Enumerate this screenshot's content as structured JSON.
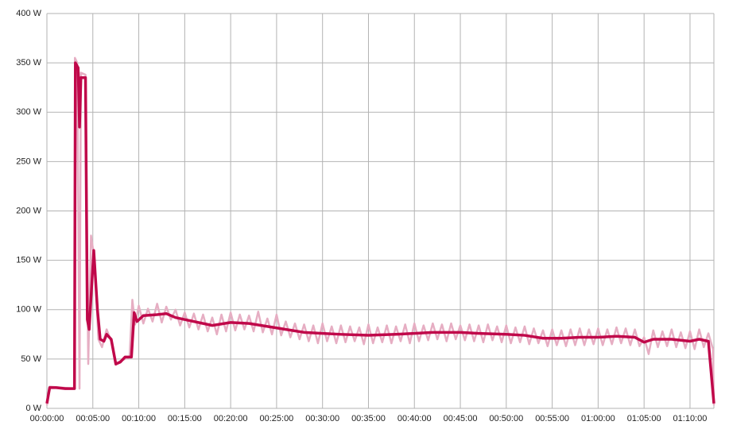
{
  "chart_data": {
    "type": "line",
    "xlim": [
      0,
      72.6
    ],
    "ylim": [
      0,
      400
    ],
    "grid": true,
    "xticks": [
      {
        "value": 0,
        "label": "00:00:00"
      },
      {
        "value": 5,
        "label": "00:05:00"
      },
      {
        "value": 10,
        "label": "00:10:00"
      },
      {
        "value": 15,
        "label": "00:15:00"
      },
      {
        "value": 20,
        "label": "00:20:00"
      },
      {
        "value": 25,
        "label": "00:25:00"
      },
      {
        "value": 30,
        "label": "00:30:00"
      },
      {
        "value": 35,
        "label": "00:35:00"
      },
      {
        "value": 40,
        "label": "00:40:00"
      },
      {
        "value": 45,
        "label": "00:45:00"
      },
      {
        "value": 50,
        "label": "00:50:00"
      },
      {
        "value": 55,
        "label": "00:55:00"
      },
      {
        "value": 60,
        "label": "01:00:00"
      },
      {
        "value": 65,
        "label": "01:05:00"
      },
      {
        "value": 70,
        "label": "01:10:00"
      }
    ],
    "yticks": [
      {
        "value": 0,
        "label": "0  W"
      },
      {
        "value": 50,
        "label": "50  W"
      },
      {
        "value": 100,
        "label": "100  W"
      },
      {
        "value": 150,
        "label": "150  W"
      },
      {
        "value": 200,
        "label": "200  W"
      },
      {
        "value": 250,
        "label": "250  W"
      },
      {
        "value": 300,
        "label": "300  W"
      },
      {
        "value": 350,
        "label": "350  W"
      },
      {
        "value": 400,
        "label": "400  W"
      }
    ],
    "series": [
      {
        "color": "#e6aec3",
        "width": 2.5,
        "x": [
          0,
          0.3,
          3,
          3.05,
          3.3,
          3.55,
          3.7,
          4.2,
          4.5,
          4.8,
          5.2,
          5.6,
          6,
          6.5,
          7,
          7.5,
          8,
          9,
          9.3,
          9.6,
          10,
          10.5,
          11,
          11.5,
          12,
          12.5,
          13,
          13.5,
          14,
          14.5,
          15,
          15.5,
          16,
          16.5,
          17,
          17.5,
          18,
          18.5,
          19,
          19.5,
          20,
          20.5,
          21,
          21.5,
          22,
          22.5,
          23,
          23.5,
          24,
          24.5,
          25,
          25.5,
          26,
          26.5,
          27,
          27.5,
          28,
          28.5,
          29,
          29.5,
          30,
          30.5,
          31,
          31.5,
          32,
          32.5,
          33,
          33.5,
          34,
          34.5,
          35,
          35.5,
          36,
          36.5,
          37,
          37.5,
          38,
          38.5,
          39,
          39.5,
          40,
          40.5,
          41,
          41.5,
          42,
          42.5,
          43,
          43.5,
          44,
          44.5,
          45,
          45.5,
          46,
          46.5,
          47,
          47.5,
          48,
          48.5,
          49,
          49.5,
          50,
          50.5,
          51,
          51.5,
          52,
          52.5,
          53,
          53.5,
          54,
          54.5,
          55,
          55.5,
          56,
          56.5,
          57,
          57.5,
          58,
          58.5,
          59,
          59.5,
          60,
          60.5,
          61,
          61.5,
          62,
          62.5,
          63,
          63.5,
          64,
          64.5,
          65,
          65.5,
          66,
          66.5,
          67,
          67.5,
          68,
          68.5,
          69,
          69.5,
          70,
          70.5,
          71,
          71.5,
          72,
          72.5,
          72.6
        ],
        "values": [
          3,
          22,
          20,
          355,
          350,
          20,
          340,
          338,
          45,
          175,
          150,
          70,
          62,
          80,
          68,
          44,
          48,
          52,
          110,
          85,
          104,
          86,
          101,
          88,
          106,
          87,
          103,
          90,
          100,
          84,
          97,
          82,
          96,
          80,
          95,
          78,
          92,
          75,
          95,
          78,
          97,
          79,
          95,
          80,
          94,
          78,
          98,
          77,
          91,
          75,
          95,
          74,
          88,
          72,
          86,
          70,
          85,
          68,
          84,
          66,
          86,
          68,
          83,
          66,
          84,
          67,
          83,
          68,
          82,
          65,
          85,
          66,
          82,
          67,
          84,
          66,
          83,
          68,
          85,
          66,
          86,
          68,
          84,
          69,
          86,
          70,
          85,
          68,
          86,
          70,
          84,
          69,
          85,
          68,
          84,
          67,
          85,
          69,
          83,
          67,
          84,
          66,
          82,
          67,
          83,
          65,
          81,
          66,
          79,
          63,
          80,
          64,
          79,
          63,
          80,
          64,
          81,
          64,
          80,
          65,
          81,
          64,
          80,
          65,
          82,
          66,
          81,
          64,
          80,
          63,
          72,
          55,
          79,
          62,
          78,
          63,
          80,
          62,
          77,
          61,
          78,
          60,
          80,
          62,
          76,
          60,
          3
        ]
      },
      {
        "color": "#c0084a",
        "width": 3.5,
        "x": [
          0,
          0.3,
          1,
          2,
          3,
          3.1,
          3.4,
          3.55,
          3.7,
          4.2,
          4.4,
          4.6,
          5.1,
          5.5,
          5.8,
          6.2,
          6.5,
          7,
          7.5,
          8,
          8.5,
          9.2,
          9.5,
          9.8,
          10.5,
          12,
          13,
          14,
          15,
          17,
          18,
          20,
          22,
          24,
          26,
          28,
          30,
          32,
          35,
          38,
          40,
          42,
          45,
          47,
          50,
          52,
          54,
          56,
          58,
          60,
          62,
          64,
          65,
          66,
          68,
          70,
          71,
          72,
          72.6
        ],
        "values": [
          5,
          21,
          21,
          20,
          20,
          350,
          345,
          285,
          335,
          335,
          90,
          80,
          160,
          100,
          70,
          68,
          75,
          70,
          45,
          47,
          52,
          52,
          97,
          88,
          94,
          95,
          96,
          92,
          90,
          86,
          84,
          87,
          86,
          83,
          80,
          77,
          76,
          75,
          74,
          75,
          76,
          77,
          77,
          76,
          75,
          74,
          71,
          71,
          72,
          72,
          73,
          72,
          67,
          70,
          70,
          68,
          70,
          68,
          5
        ]
      }
    ]
  }
}
